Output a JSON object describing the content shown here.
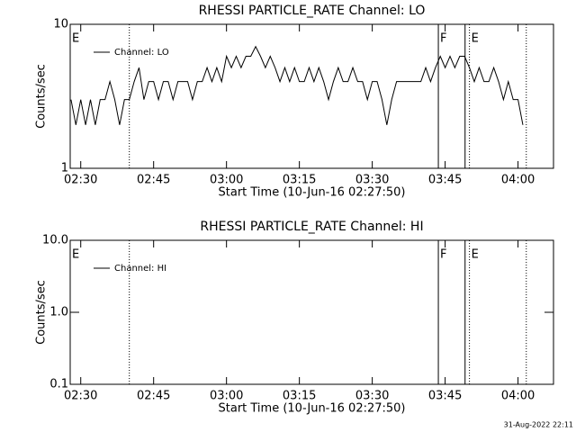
{
  "chart_data": [
    {
      "type": "line",
      "title": "RHESSI PARTICLE_RATE Channel: LO",
      "x_label": "Start Time (10-Jun-16 02:27:50)",
      "y_label": "Counts/sec",
      "log_y": true,
      "xlim": [
        27.83,
        127.3
      ],
      "ylim": [
        1,
        10
      ],
      "yticks": [
        1,
        10
      ],
      "xticks": [
        {
          "value": 30,
          "label": "02:30"
        },
        {
          "value": 45,
          "label": "02:45"
        },
        {
          "value": 60,
          "label": "03:00"
        },
        {
          "value": 75,
          "label": "03:15"
        },
        {
          "value": 90,
          "label": "03:30"
        },
        {
          "value": 105,
          "label": "03:45"
        },
        {
          "value": 120,
          "label": "04:00"
        }
      ],
      "flags": [
        {
          "x": 40,
          "style": "dotted"
        },
        {
          "x": 103.6,
          "style": "solid"
        },
        {
          "x": 109.1,
          "style": "solid"
        },
        {
          "x": 110,
          "style": "dotted"
        },
        {
          "x": 121.7,
          "style": "dotted"
        }
      ],
      "annotations": [
        {
          "text": "E",
          "x": 27.83
        },
        {
          "text": "F",
          "x": 103.6
        },
        {
          "text": "E",
          "x": 110
        }
      ],
      "x": [
        28,
        29,
        30,
        31,
        32,
        33,
        34,
        35,
        36,
        37,
        38,
        39,
        40,
        41,
        42,
        43,
        44,
        45,
        46,
        47,
        48,
        49,
        50,
        51,
        52,
        53,
        54,
        55,
        56,
        57,
        58,
        59,
        60,
        61,
        62,
        63,
        64,
        65,
        66,
        67,
        68,
        69,
        70,
        71,
        72,
        73,
        74,
        75,
        76,
        77,
        78,
        79,
        80,
        81,
        82,
        83,
        84,
        85,
        86,
        87,
        88,
        89,
        90,
        91,
        92,
        93,
        94,
        95,
        96,
        97,
        98,
        99,
        100,
        101,
        102,
        103,
        104,
        105,
        106,
        107,
        108,
        109,
        110,
        111,
        112,
        113,
        114,
        115,
        116,
        117,
        118,
        119,
        120,
        121
      ],
      "series": [
        {
          "name": "Channel: LO",
          "color": "#000000",
          "values": [
            3,
            2,
            3,
            2,
            3,
            2,
            3,
            3,
            4,
            3,
            2,
            3,
            3,
            4,
            5,
            3,
            4,
            4,
            3,
            4,
            4,
            3,
            4,
            4,
            4,
            3,
            4,
            4,
            5,
            4,
            5,
            4,
            6,
            5,
            6,
            5,
            6,
            6,
            7,
            6,
            5,
            6,
            5,
            4,
            5,
            4,
            5,
            4,
            4,
            5,
            4,
            5,
            4,
            3,
            4,
            5,
            4,
            4,
            5,
            4,
            4,
            3,
            4,
            4,
            3,
            2,
            3,
            4,
            4,
            4,
            4,
            4,
            4,
            5,
            4,
            5,
            6,
            5,
            6,
            5,
            6,
            6,
            5,
            4,
            5,
            4,
            4,
            5,
            4,
            3,
            4,
            3,
            3,
            2
          ]
        }
      ]
    },
    {
      "type": "line",
      "title": "RHESSI PARTICLE_RATE Channel: HI",
      "x_label": "Start Time (10-Jun-16 02:27:50)",
      "y_label": "Counts/sec",
      "log_y": true,
      "xlim": [
        27.83,
        127.3
      ],
      "ylim": [
        0.1,
        10
      ],
      "yticks": [
        0.1,
        {
          "value": 1,
          "label": "1.0"
        },
        {
          "value": 10,
          "label": "10.0"
        }
      ],
      "xticks": [
        {
          "value": 30,
          "label": "02:30"
        },
        {
          "value": 45,
          "label": "02:45"
        },
        {
          "value": 60,
          "label": "03:00"
        },
        {
          "value": 75,
          "label": "03:15"
        },
        {
          "value": 90,
          "label": "03:30"
        },
        {
          "value": 105,
          "label": "03:45"
        },
        {
          "value": 120,
          "label": "04:00"
        }
      ],
      "flags": [
        {
          "x": 40,
          "style": "dotted"
        },
        {
          "x": 103.6,
          "style": "solid"
        },
        {
          "x": 109.1,
          "style": "solid"
        },
        {
          "x": 110,
          "style": "dotted"
        },
        {
          "x": 121.7,
          "style": "dotted"
        }
      ],
      "annotations": [
        {
          "text": "E",
          "x": 27.83
        },
        {
          "text": "F",
          "x": 103.6
        },
        {
          "text": "E",
          "x": 110
        }
      ],
      "x": [],
      "series": [
        {
          "name": "Channel: HI",
          "color": "#000000",
          "values": []
        }
      ]
    }
  ],
  "footer_text": "31-Aug-2022 22:11"
}
